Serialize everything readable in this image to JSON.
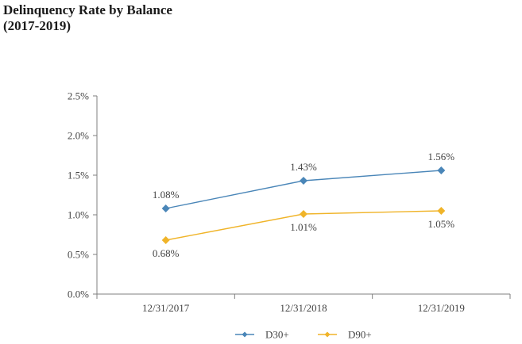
{
  "header": {
    "title_line1": "Delinquency Rate by Balance",
    "title_line2": "(2017-2019)"
  },
  "chart_data": {
    "type": "line",
    "title": "Delinquency Rate by Balance (2017-2019)",
    "categories": [
      "12/31/2017",
      "12/31/2018",
      "12/31/2019"
    ],
    "series": [
      {
        "name": "D30+",
        "values": [
          1.08,
          1.43,
          1.56
        ],
        "labels": [
          "1.08%",
          "1.43%",
          "1.56%"
        ],
        "color": "#4a86b8"
      },
      {
        "name": "D90+",
        "values": [
          0.68,
          1.01,
          1.05
        ],
        "labels": [
          "0.68%",
          "1.01%",
          "1.05%"
        ],
        "color": "#f0b429"
      }
    ],
    "y_ticks": [
      "0.0%",
      "0.5%",
      "1.0%",
      "1.5%",
      "2.0%",
      "2.5%"
    ],
    "ylim": [
      0,
      2.5
    ],
    "grid": false,
    "legend_position": "bottom-center",
    "axis_color": "#7f7f7f"
  }
}
